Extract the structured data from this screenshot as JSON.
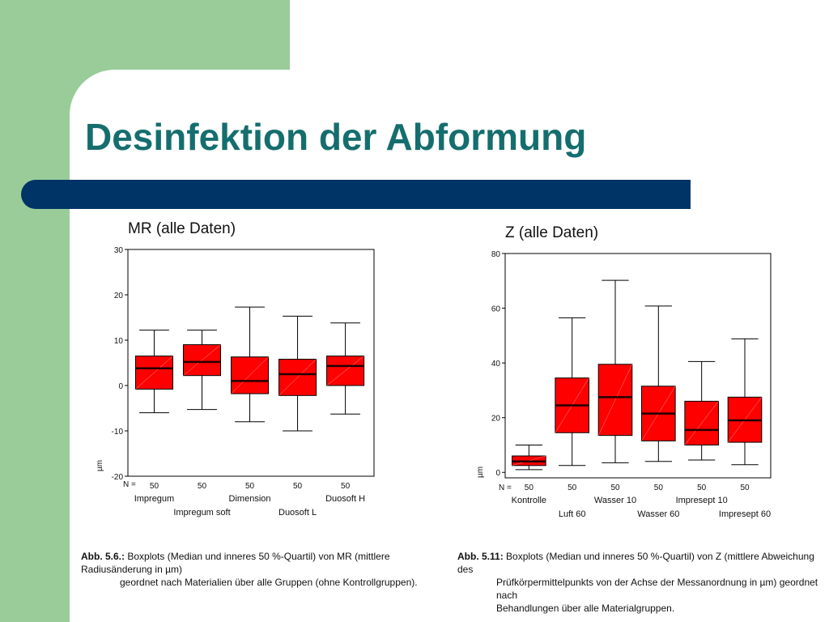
{
  "slide": {
    "title": "Desinfektion der Abformung"
  },
  "chart_data": [
    {
      "type": "box",
      "title": "MR (alle Daten)",
      "ylabel": "µm",
      "ylim": [
        -20,
        30
      ],
      "yticks": [
        -20,
        -10,
        0,
        10,
        20,
        30
      ],
      "n_label": "N =",
      "categories": [
        "Impregum",
        "Impregum soft",
        "Dimension",
        "Duosoft L",
        "Duosoft H"
      ],
      "n": [
        "50",
        "50",
        "50",
        "50",
        "50"
      ],
      "min": [
        -6,
        -5.3,
        -8,
        -10,
        -6.3
      ],
      "q1": [
        -0.8,
        2.2,
        -1.8,
        -2.2,
        0
      ],
      "median": [
        3.8,
        5.2,
        1,
        2.5,
        4.3
      ],
      "q3": [
        6.5,
        9,
        6.3,
        5.8,
        6.5
      ],
      "max": [
        12.2,
        12.2,
        17.3,
        15.3,
        13.8
      ],
      "colors": {
        "box": "#ff0000",
        "median": "#220000",
        "whisker": "#000000"
      }
    },
    {
      "type": "box",
      "title": "Z (alle Daten)",
      "ylabel": "µm",
      "ylim": [
        -2,
        80
      ],
      "yticks": [
        0,
        20,
        40,
        60,
        80
      ],
      "n_label": "N =",
      "categories": [
        "Kontrolle",
        "Luft 60",
        "Wasser 10",
        "Wasser 60",
        "Impresept 10",
        "Impresept 60"
      ],
      "n": [
        "50",
        "50",
        "50",
        "50",
        "50",
        "50"
      ],
      "min": [
        1,
        2.5,
        3.5,
        4,
        4.5,
        2.8
      ],
      "q1": [
        2.5,
        14.5,
        13.5,
        11.5,
        10,
        11
      ],
      "median": [
        4,
        24.5,
        27.5,
        21.5,
        15.5,
        19
      ],
      "q3": [
        6,
        34.5,
        39.5,
        31.5,
        26,
        27.5
      ],
      "max": [
        10,
        56.5,
        70.2,
        60.8,
        40.5,
        48.8
      ],
      "colors": {
        "box": "#ff0000",
        "median": "#220000",
        "whisker": "#000000"
      }
    }
  ],
  "captions": [
    {
      "label": "Abb. 5.6.:",
      "line1": "Boxplots (Median und inneres 50 %-Quartil) von MR (mittlere Radiusänderung in µm)",
      "line2": "geordnet nach Materialien über alle Gruppen (ohne Kontrollgruppen)."
    },
    {
      "label": "Abb. 5.11:",
      "line1": "Boxplots (Median und inneres 50 %-Quartil) von Z (mittlere Abweichung des",
      "line2": "Prüfkörpermittelpunkts von der Achse der Messanordnung in µm) geordnet nach",
      "line3": "Behandlungen über alle Materialgruppen."
    }
  ]
}
